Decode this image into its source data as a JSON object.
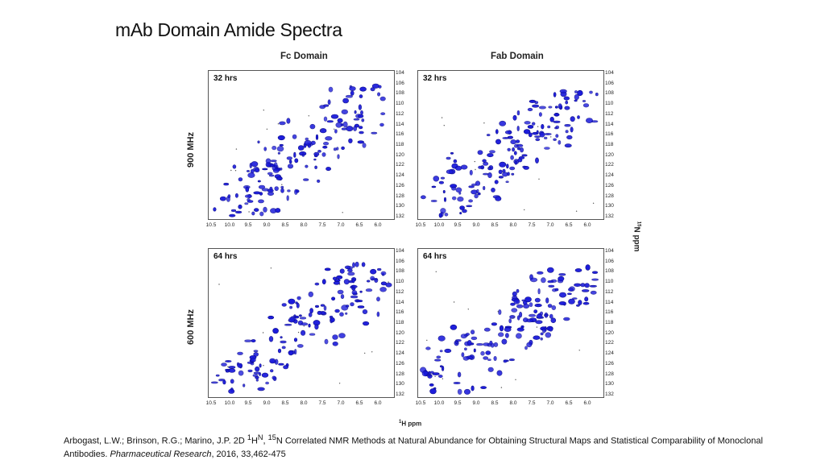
{
  "slide": {
    "title": "mAb Domain Amide Spectra"
  },
  "columns": [
    "Fc Domain",
    "Fab Domain"
  ],
  "rows": [
    "900 MHz",
    "600 MHz"
  ],
  "panels": [
    {
      "label": "32 hrs",
      "domain": "Fc",
      "field": "900 MHz"
    },
    {
      "label": "32 hrs",
      "domain": "Fab",
      "field": "900 MHz"
    },
    {
      "label": "64 hrs",
      "domain": "Fc",
      "field": "600 MHz"
    },
    {
      "label": "64 hrs",
      "domain": "Fab",
      "field": "600 MHz"
    }
  ],
  "axes": {
    "x_ticks": [
      "10.5",
      "10.0",
      "9.5",
      "9.0",
      "8.5",
      "8.0",
      "7.5",
      "7.0",
      "6.5",
      "6.0"
    ],
    "y_ticks": [
      "104",
      "106",
      "108",
      "110",
      "112",
      "114",
      "116",
      "118",
      "120",
      "122",
      "124",
      "126",
      "128",
      "130",
      "132"
    ],
    "x_label_sup": "1",
    "x_label": "H ppm",
    "y_label_sup": "15",
    "y_label": "N ppm"
  },
  "citation": {
    "authors": "Arbogast, L.W.; Brinson, R.G.; Marino, J.P. 2D ",
    "sup1": "1",
    "h": "H",
    "supN": "N",
    "sep": ", ",
    "sup15": "15",
    "rest": "N Correlated NMR Methods at Natural Abundance for Obtaining Structural Maps and Statistical Comparability of Monoclonal Antibodies. ",
    "journal": "Pharmaceutical Research",
    "tail": ", 2016, 33,462-475"
  },
  "colors": {
    "peak": "#1a1adb",
    "peak_edge": "#0a0a8a",
    "frame": "#555555"
  }
}
